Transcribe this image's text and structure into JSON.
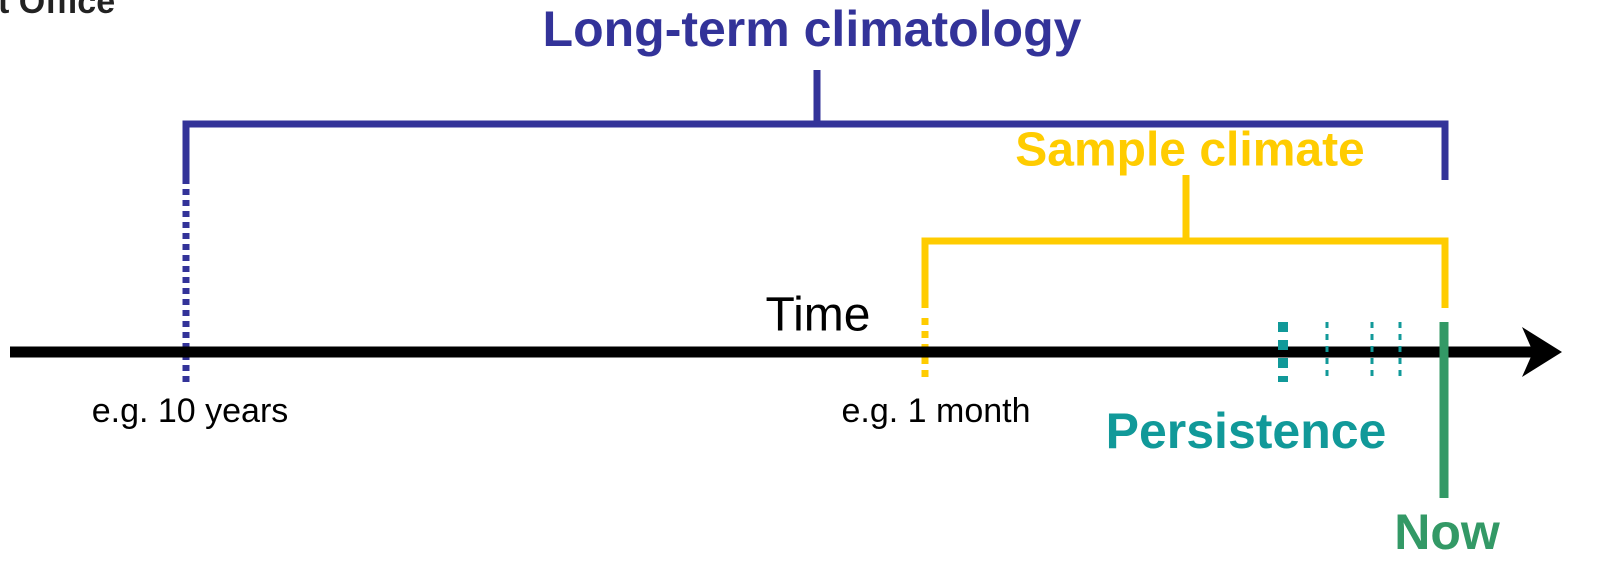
{
  "logo": "t Office",
  "brackets": {
    "long_term": "Long-term climatology",
    "sample": "Sample climate"
  },
  "axis": {
    "label": "Time"
  },
  "marks": {
    "ten_years": "e.g. 10 years",
    "one_month": "e.g. 1 month",
    "persistence": "Persistence",
    "now": "Now"
  }
}
